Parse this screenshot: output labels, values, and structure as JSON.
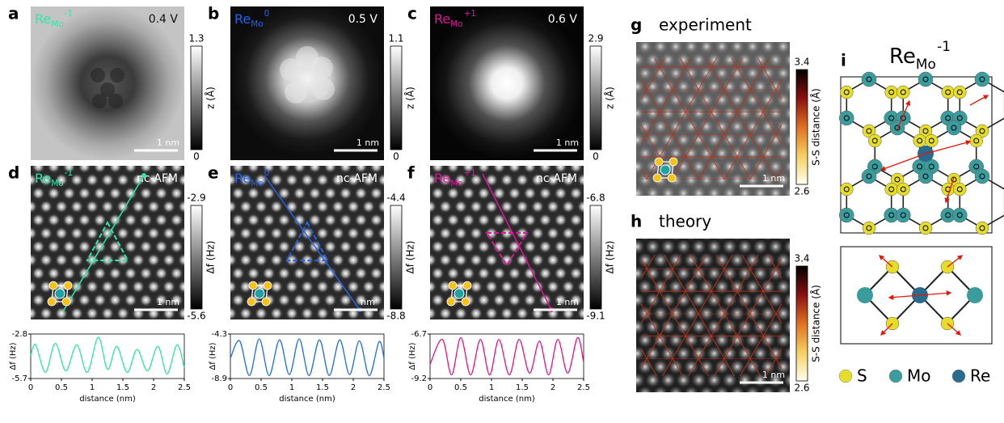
{
  "panels": [
    {
      "label": "a",
      "tag": {
        "base": "Re",
        "sub": "Mo",
        "sup": "-1"
      },
      "color": "#2de8a6",
      "bias": "0.4 V",
      "scale_bar": "1 nm",
      "colorbar": {
        "title": "z (Å)",
        "ticks": [
          1.3,
          0
        ]
      }
    },
    {
      "label": "b",
      "tag": {
        "base": "Re",
        "sub": "Mo",
        "sup": "0"
      },
      "color": "#2563eb",
      "bias": "0.5 V",
      "scale_bar": "1 nm",
      "colorbar": {
        "title": "z (Å)",
        "ticks": [
          1.1,
          0
        ]
      }
    },
    {
      "label": "c",
      "tag": {
        "base": "Re",
        "sub": "Mo",
        "sup": "+1"
      },
      "color": "#e0159a",
      "bias": "0.6 V",
      "scale_bar": "1 nm",
      "colorbar": {
        "title": "z (Å)",
        "ticks": [
          2.9,
          0
        ]
      }
    },
    {
      "label": "d",
      "tag": {
        "base": "Re",
        "sub": "Mo",
        "sup": "-1"
      },
      "color": "#2de8a6",
      "mode": "nc-AFM",
      "scale_bar": "1 nm",
      "colorbar": {
        "title": "Δf (Hz)",
        "ticks": [
          -2.9,
          -5.6
        ]
      },
      "profile": {
        "type": "line",
        "color": "#2ee6a0",
        "x_label": "distance (nm)",
        "y_label": "Δf (Hz)",
        "xlim": [
          0,
          2.5
        ],
        "ylim": [
          -5.7,
          -2.8
        ],
        "xticks": [
          0,
          0.5,
          1,
          1.5,
          2,
          2.5
        ],
        "yticks": [
          -2.8,
          -5.7
        ],
        "x": [
          0,
          0.08,
          0.24,
          0.4,
          0.57,
          0.75,
          0.92,
          1.1,
          1.25,
          1.4,
          1.57,
          1.73,
          1.9,
          2.07,
          2.22,
          2.38,
          2.5
        ],
        "values": [
          -4.2,
          -3.5,
          -5.3,
          -3.4,
          -5.2,
          -3.5,
          -5.3,
          -3.0,
          -5.1,
          -3.6,
          -5.3,
          -3.8,
          -5.2,
          -3.6,
          -5.4,
          -3.5,
          -5.0
        ]
      }
    },
    {
      "label": "e",
      "tag": {
        "base": "Re",
        "sub": "Mo",
        "sup": "0"
      },
      "color": "#2563eb",
      "mode": "nc-AFM",
      "scale_bar": "nm",
      "colorbar": {
        "title": "Δf (Hz)",
        "ticks": [
          -4.4,
          -8.8
        ]
      },
      "profile": {
        "type": "line",
        "color": "#1f6fe0",
        "x_label": "distance (nm)",
        "y_label": "Δf (Hz)",
        "xlim": [
          0,
          2.5
        ],
        "ylim": [
          -8.9,
          -4.3
        ],
        "xticks": [
          0,
          0.5,
          1,
          1.5,
          2,
          2.5
        ],
        "yticks": [
          -4.3,
          -8.9
        ],
        "x": [
          0,
          0.15,
          0.31,
          0.47,
          0.63,
          0.8,
          0.96,
          1.12,
          1.28,
          1.45,
          1.61,
          1.78,
          1.94,
          2.1,
          2.26,
          2.42,
          2.5
        ],
        "values": [
          -6.8,
          -5.0,
          -8.6,
          -4.8,
          -8.6,
          -4.9,
          -8.5,
          -4.8,
          -8.6,
          -4.9,
          -8.6,
          -4.9,
          -8.5,
          -5.0,
          -8.6,
          -5.1,
          -6.8
        ]
      }
    },
    {
      "label": "f",
      "tag": {
        "base": "Re",
        "sub": "Mo",
        "sup": "+1"
      },
      "color": "#e0159a",
      "mode": "nc-AFM",
      "scale_bar": "1 nm",
      "colorbar": {
        "title": "Δf (Hz)",
        "ticks": [
          -6.8,
          -9.1
        ]
      },
      "profile": {
        "type": "line",
        "color": "#e0158f",
        "x_label": "distance (nm)",
        "y_label": "Δf (Hz)",
        "xlim": [
          0,
          2.5
        ],
        "ylim": [
          -9.2,
          -6.7
        ],
        "xticks": [
          0,
          0.5,
          1,
          1.5,
          2,
          2.5
        ],
        "yticks": [
          -6.7,
          -9.2
        ],
        "x": [
          0,
          0.2,
          0.35,
          0.5,
          0.66,
          0.82,
          0.97,
          1.12,
          1.29,
          1.45,
          1.62,
          1.78,
          1.93,
          2.08,
          2.24,
          2.4,
          2.5
        ],
        "values": [
          -8.4,
          -7.0,
          -9.0,
          -6.9,
          -9.0,
          -7.0,
          -9.0,
          -7.0,
          -9.0,
          -7.0,
          -8.9,
          -7.1,
          -9.0,
          -7.0,
          -8.9,
          -6.9,
          -8.3
        ]
      }
    },
    {
      "label": "g",
      "title": "experiment",
      "scale_bar": "1 nm",
      "colorbar": {
        "title": "S-S distance (Å)",
        "ticks": [
          3.4,
          2.6
        ]
      }
    },
    {
      "label": "h",
      "title": "theory",
      "scale_bar": "1 nm",
      "colorbar": {
        "title": "S-S distance (Å)",
        "ticks": [
          3.4,
          2.6
        ]
      }
    },
    {
      "label": "i",
      "title": {
        "base": "Re",
        "sub": "Mo",
        "sup": "-1"
      },
      "legend": [
        {
          "name": "S",
          "color": "#e6dc2a"
        },
        {
          "name": "Mo",
          "color": "#3a9c9c"
        },
        {
          "name": "Re",
          "color": "#2a6a8c"
        }
      ]
    }
  ]
}
